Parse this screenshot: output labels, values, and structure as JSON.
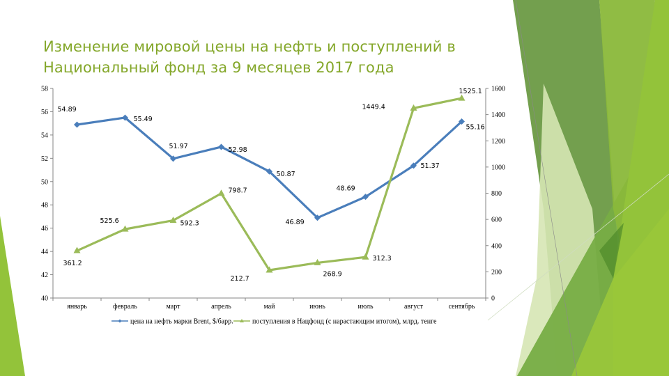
{
  "slide": {
    "title_line1": "Изменение мировой цены на нефть и поступлений в",
    "title_line2": "Национальный фонд за 9 месяцев 2017 года",
    "title_color": "#84a72a"
  },
  "colors": {
    "brent": "#4a7ebb",
    "fund": "#9bbb59",
    "axis": "#868686",
    "deco_dark": "#6b9a45",
    "deco_mid": "#77ad45",
    "deco_light": "#93c33a",
    "deco_pale": "#d6e6b4"
  },
  "chart_data": {
    "type": "line",
    "title": "Изменение мировой цены на нефть и поступлений в Национальный фонд за 9 месяцев 2017 года",
    "categories": [
      "январь",
      "февраль",
      "март",
      "апрель",
      "май",
      "июнь",
      "июль",
      "август",
      "сентябрь"
    ],
    "series": [
      {
        "name": "цена на нефть марки Brent, $/барр.",
        "axis": "left",
        "marker": "diamond",
        "values": [
          54.89,
          55.49,
          51.97,
          52.98,
          50.87,
          46.89,
          48.69,
          51.37,
          55.16
        ],
        "labels": [
          "54.89",
          "55.49",
          "51.97",
          "52.98",
          "50.87",
          "46.89",
          "48.69",
          "51.37",
          "55.16"
        ]
      },
      {
        "name": "поступления в Нацфонд (с нарастающим итогом), млрд. тенге",
        "axis": "right",
        "marker": "triangle",
        "values": [
          361.2,
          525.6,
          592.3,
          798.7,
          212.7,
          268.9,
          312.3,
          1449.4,
          1525.1
        ],
        "labels": [
          "361.2",
          "525.6",
          "592.3",
          "798.7",
          "212.7",
          "268.9",
          "312.3",
          "1449.4",
          "1525.1"
        ]
      }
    ],
    "left_axis": {
      "ylim": [
        40,
        58
      ],
      "ticks": [
        "40",
        "42",
        "44",
        "46",
        "48",
        "50",
        "52",
        "54",
        "56",
        "58"
      ]
    },
    "right_axis": {
      "ylim": [
        0,
        1600
      ],
      "ticks": [
        "0",
        "200",
        "400",
        "600",
        "800",
        "1000",
        "1200",
        "1400",
        "1600"
      ]
    },
    "xlabel": "",
    "ylabel": "",
    "grid": false,
    "legend_position": "bottom"
  }
}
